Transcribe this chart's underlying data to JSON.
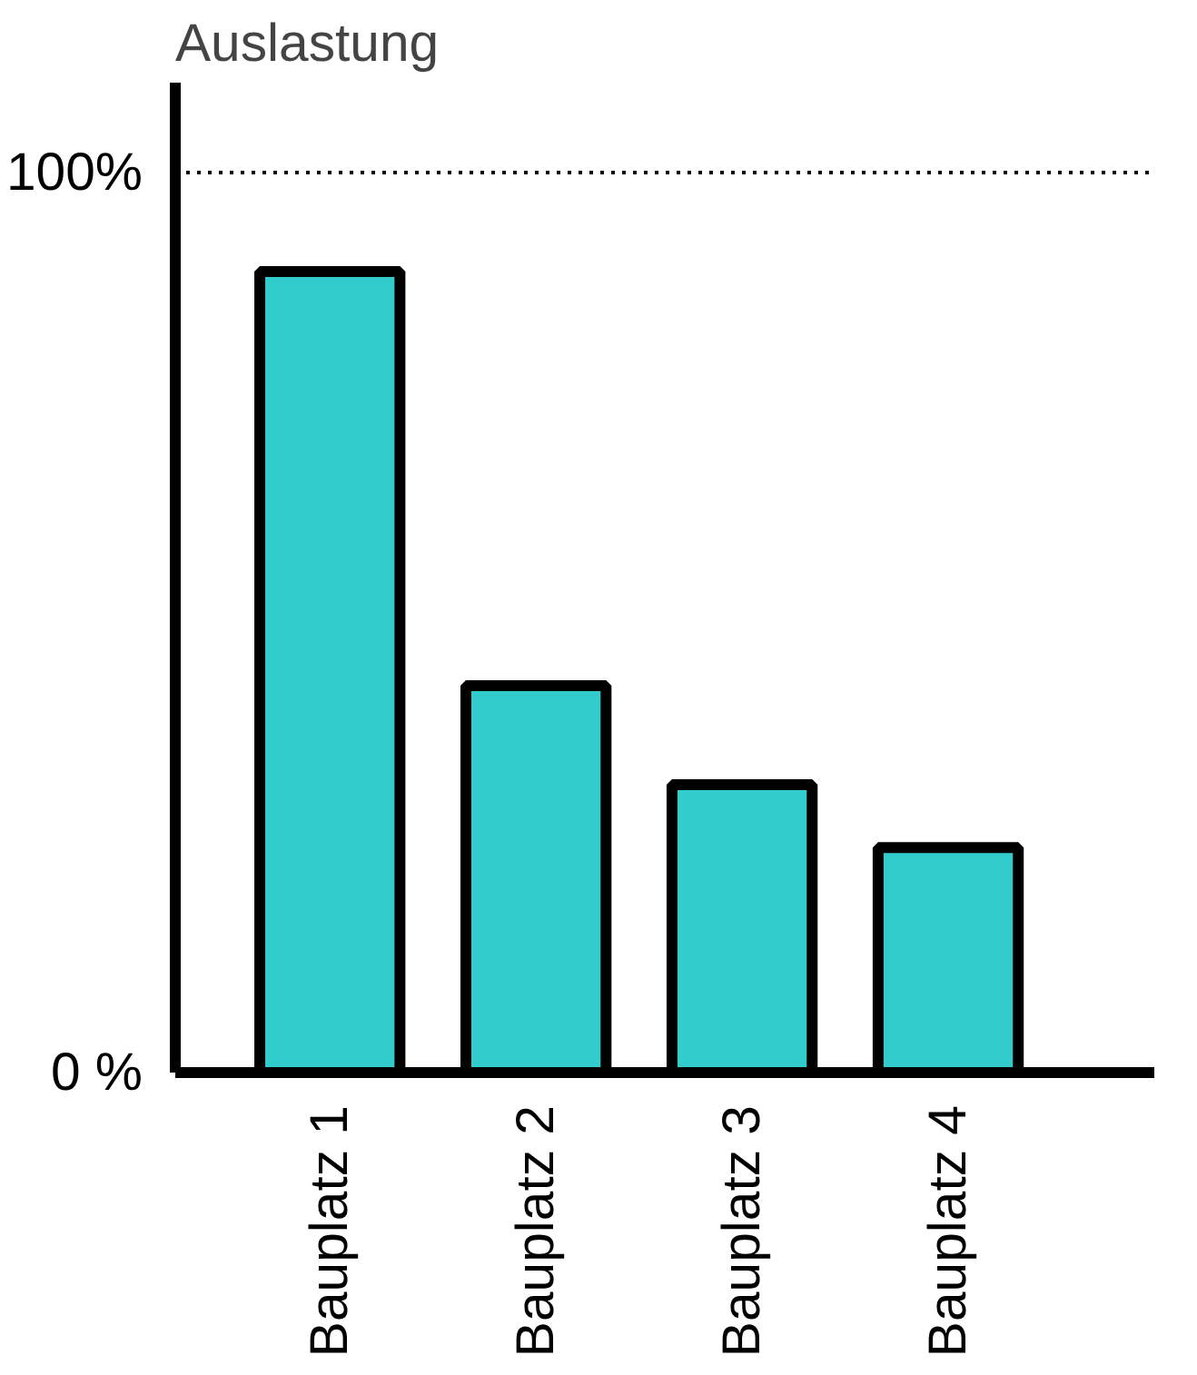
{
  "chart_data": {
    "type": "bar",
    "ylabel": "Auslastung",
    "categories": [
      "Bauplatz 1",
      "Bauplatz 2",
      "Bauplatz 3",
      "Bauplatz 4"
    ],
    "values": [
      89,
      43,
      32,
      25
    ],
    "color": "#33cccc",
    "ylim": [
      0,
      110
    ],
    "yticks": [
      {
        "value": 0,
        "label": "0 %"
      },
      {
        "value": 100,
        "label": "100%"
      }
    ],
    "ref_lines": [
      {
        "axis": "y",
        "value": 100,
        "line_style": "dotted"
      }
    ],
    "grid": false
  }
}
